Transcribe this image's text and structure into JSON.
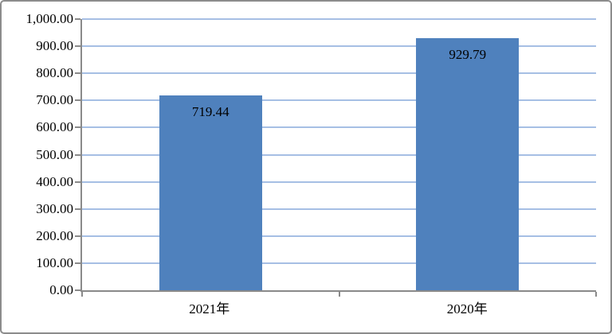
{
  "chart_data": {
    "type": "bar",
    "categories": [
      "2021年",
      "2020年"
    ],
    "values": [
      719.44,
      929.79
    ],
    "data_labels": [
      "719.44",
      "929.79"
    ],
    "title": "",
    "xlabel": "",
    "ylabel": "",
    "ylim": [
      0,
      1000
    ],
    "ytick_step": 100,
    "ytick_labels": [
      "0.00",
      "100.00",
      "200.00",
      "300.00",
      "400.00",
      "500.00",
      "600.00",
      "700.00",
      "800.00",
      "900.00",
      "1,000.00"
    ],
    "grid": true,
    "legend": false,
    "series": [
      {
        "name": "value",
        "values": [
          719.44,
          929.79
        ]
      }
    ]
  },
  "colors": {
    "bar_fill": "#4F81BD",
    "gridline": "#A6BFE4",
    "axis_line": "#8A8A8A",
    "frame_border": "#8C8C8C",
    "label_text": "#000000",
    "background": "#FFFFFF"
  }
}
